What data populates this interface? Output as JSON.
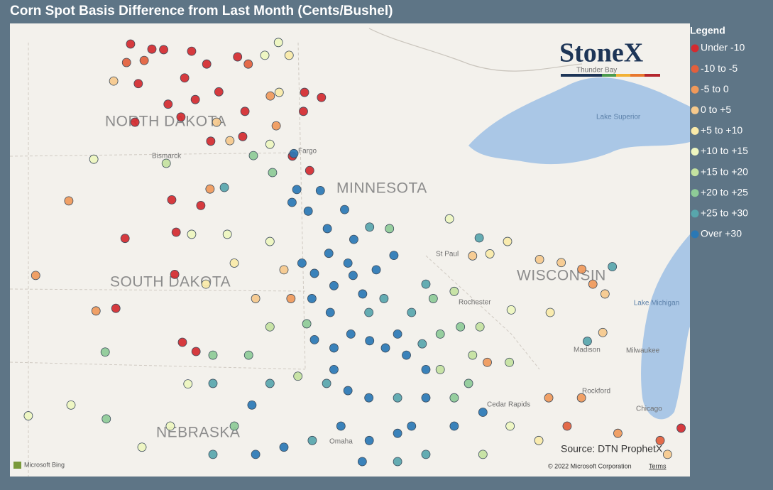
{
  "title": "Corn Spot Basis Difference from Last Month (Cents/Bushel)",
  "legend": {
    "title": "Legend",
    "classes": [
      {
        "label": "Under -10",
        "color": "#d42a2f"
      },
      {
        "label": "-10 to -5",
        "color": "#e35f3c"
      },
      {
        "label": "-5 to 0",
        "color": "#f0995a"
      },
      {
        "label": "0 to +5",
        "color": "#f6c98c"
      },
      {
        "label": "+5 to +10",
        "color": "#faeaa8"
      },
      {
        "label": "+10 to +15",
        "color": "#eef6bf"
      },
      {
        "label": "+15 to +20",
        "color": "#c4e2a0"
      },
      {
        "label": "+20 to +25",
        "color": "#8ecb97"
      },
      {
        "label": "+25 to +30",
        "color": "#58a6ac"
      },
      {
        "label": "Over +30",
        "color": "#2a78b5"
      }
    ]
  },
  "logo": "StoneX",
  "source": "Source: DTN ProphetX",
  "attribution": {
    "provider": "Microsoft Bing",
    "copyright": "© 2022 Microsoft Corporation",
    "terms": "Terms"
  },
  "map": {
    "places": [
      "NORTH DAKOTA",
      "MINNESOTA",
      "SOUTH DAKOTA",
      "WISCONSIN",
      "NEBRASKA",
      "Bismarck",
      "Fargo",
      "Lake Superior",
      "Lake Michigan",
      "Milwaukee",
      "Madison",
      "Rockford",
      "Chicago",
      "Cedar Rapids",
      "Rochester",
      "Omaha",
      "St Paul",
      "Thunder Bay"
    ],
    "lon_range": [
      -104.58,
      -86.09
    ],
    "lat_range": [
      40.75,
      49.56
    ],
    "points": [
      [
        -101.3,
        49.16,
        0
      ],
      [
        -100.72,
        49.06,
        0
      ],
      [
        -99.64,
        49.02,
        0
      ],
      [
        -98.39,
        48.91,
        0
      ],
      [
        -99.23,
        48.77,
        0
      ],
      [
        -101.09,
        48.39,
        0
      ],
      [
        -100.28,
        47.99,
        0
      ],
      [
        -99.54,
        48.08,
        0
      ],
      [
        -98.9,
        48.23,
        0
      ],
      [
        -98.19,
        47.85,
        0
      ],
      [
        -101.18,
        47.64,
        0
      ],
      [
        -99.12,
        47.27,
        0
      ],
      [
        -98.25,
        47.36,
        0
      ],
      [
        -100.18,
        46.13,
        0
      ],
      [
        -101.45,
        45.38,
        0
      ],
      [
        -100.06,
        45.5,
        0
      ],
      [
        -100.1,
        44.68,
        0
      ],
      [
        -101.7,
        44.02,
        0
      ],
      [
        -99.89,
        43.36,
        0
      ],
      [
        -99.52,
        43.18,
        0
      ],
      [
        -101.41,
        48.8,
        1
      ],
      [
        -100.93,
        48.84,
        1
      ],
      [
        -98.1,
        48.77,
        1
      ],
      [
        -97.5,
        48.15,
        2
      ],
      [
        -96.57,
        48.22,
        0
      ],
      [
        -96.11,
        48.12,
        0
      ],
      [
        -96.6,
        47.85,
        0
      ],
      [
        -96.43,
        46.7,
        0
      ],
      [
        -96.9,
        46.98,
        0
      ],
      [
        -97.34,
        47.57,
        2
      ],
      [
        -97.26,
        48.22,
        4
      ],
      [
        -97.65,
        48.94,
        5
      ],
      [
        -96.99,
        48.94,
        4
      ],
      [
        -98.96,
        47.64,
        3
      ],
      [
        -98.6,
        47.28,
        3
      ],
      [
        -99.14,
        46.34,
        2
      ],
      [
        -102.98,
        46.11,
        2
      ],
      [
        -99.39,
        46.02,
        0
      ],
      [
        -102.3,
        46.92,
        5
      ],
      [
        -100.33,
        46.84,
        6
      ],
      [
        -97.96,
        46.99,
        7
      ],
      [
        -97.51,
        47.21,
        5
      ],
      [
        -96.86,
        47.03,
        9
      ],
      [
        -97.44,
        46.66,
        7
      ],
      [
        -98.75,
        46.37,
        8
      ],
      [
        -96.78,
        46.33,
        9
      ],
      [
        -96.91,
        46.08,
        9
      ],
      [
        -96.14,
        46.31,
        9
      ],
      [
        -96.47,
        45.91,
        9
      ],
      [
        -95.95,
        45.57,
        9
      ],
      [
        -95.48,
        45.94,
        9
      ],
      [
        -94.8,
        45.6,
        8
      ],
      [
        -94.26,
        45.57,
        7
      ],
      [
        -95.23,
        45.36,
        9
      ],
      [
        -95.91,
        45.09,
        9
      ],
      [
        -96.3,
        44.7,
        9
      ],
      [
        -95.25,
        44.66,
        9
      ],
      [
        -95.77,
        44.46,
        9
      ],
      [
        -96.37,
        44.21,
        9
      ],
      [
        -94.99,
        44.3,
        9
      ],
      [
        -94.41,
        44.21,
        8
      ],
      [
        -94.14,
        45.05,
        9
      ],
      [
        -95.87,
        43.94,
        9
      ],
      [
        -96.51,
        43.72,
        7
      ],
      [
        -96.3,
        43.41,
        9
      ],
      [
        -95.77,
        43.25,
        9
      ],
      [
        -95.31,
        43.52,
        9
      ],
      [
        -94.8,
        43.39,
        9
      ],
      [
        -94.37,
        43.25,
        9
      ],
      [
        -93.8,
        43.11,
        9
      ],
      [
        -93.37,
        43.33,
        8
      ],
      [
        -92.88,
        43.52,
        7
      ],
      [
        -92.33,
        43.66,
        7
      ],
      [
        -93.66,
        43.94,
        8
      ],
      [
        -94.82,
        43.94,
        8
      ],
      [
        -93.07,
        44.21,
        7
      ],
      [
        -92.5,
        44.35,
        6
      ],
      [
        -93.27,
        44.49,
        8
      ],
      [
        -92.63,
        45.76,
        5
      ],
      [
        -91.82,
        45.39,
        8
      ],
      [
        -92.0,
        45.04,
        3
      ],
      [
        -91.53,
        45.08,
        4
      ],
      [
        -91.05,
        45.32,
        4
      ],
      [
        -90.18,
        44.97,
        3
      ],
      [
        -89.59,
        44.91,
        3
      ],
      [
        -89.03,
        44.78,
        2
      ],
      [
        -88.2,
        44.83,
        8
      ],
      [
        -88.73,
        44.49,
        2
      ],
      [
        -88.4,
        44.3,
        3
      ],
      [
        -88.46,
        43.55,
        3
      ],
      [
        -88.88,
        43.38,
        8
      ],
      [
        -89.89,
        43.94,
        4
      ],
      [
        -90.95,
        43.99,
        5
      ],
      [
        -91.8,
        43.66,
        6
      ],
      [
        -92.0,
        43.11,
        6
      ],
      [
        -91.0,
        42.97,
        6
      ],
      [
        -91.6,
        42.97,
        2
      ],
      [
        -89.93,
        42.28,
        2
      ],
      [
        -89.04,
        42.28,
        2
      ],
      [
        -89.43,
        41.73,
        1
      ],
      [
        -88.05,
        41.59,
        2
      ],
      [
        -86.9,
        41.45,
        1
      ],
      [
        -86.33,
        41.69,
        0
      ],
      [
        -86.7,
        41.18,
        3
      ],
      [
        -90.2,
        41.45,
        4
      ],
      [
        -90.98,
        41.73,
        5
      ],
      [
        -91.72,
        42.0,
        9
      ],
      [
        -92.5,
        42.28,
        7
      ],
      [
        -93.27,
        42.28,
        9
      ],
      [
        -94.04,
        42.28,
        8
      ],
      [
        -94.82,
        42.28,
        9
      ],
      [
        -95.39,
        42.42,
        9
      ],
      [
        -95.97,
        42.56,
        8
      ],
      [
        -96.75,
        42.7,
        6
      ],
      [
        -97.51,
        42.56,
        8
      ],
      [
        -98.0,
        42.14,
        9
      ],
      [
        -98.48,
        41.73,
        7
      ],
      [
        -99.06,
        42.56,
        8
      ],
      [
        -100.22,
        41.73,
        5
      ],
      [
        -100.99,
        41.32,
        5
      ],
      [
        -101.96,
        41.87,
        7
      ],
      [
        -102.92,
        42.14,
        5
      ],
      [
        -104.08,
        41.93,
        5
      ],
      [
        -103.88,
        44.66,
        2
      ],
      [
        -102.24,
        43.97,
        2
      ],
      [
        -101.99,
        43.17,
        7
      ],
      [
        -99.74,
        42.55,
        5
      ],
      [
        -99.06,
        41.18,
        8
      ],
      [
        -97.9,
        41.18,
        9
      ],
      [
        -97.13,
        41.32,
        9
      ],
      [
        -96.36,
        41.45,
        8
      ],
      [
        -95.58,
        41.73,
        9
      ],
      [
        -94.81,
        41.45,
        9
      ],
      [
        -94.04,
        41.59,
        9
      ],
      [
        -93.27,
        41.18,
        8
      ],
      [
        -92.5,
        41.73,
        9
      ],
      [
        -91.72,
        41.18,
        6
      ],
      [
        -97.9,
        44.21,
        3
      ],
      [
        -98.48,
        44.9,
        4
      ],
      [
        -99.25,
        44.49,
        4
      ],
      [
        -99.64,
        45.46,
        5
      ],
      [
        -98.67,
        45.46,
        5
      ],
      [
        -97.51,
        45.32,
        5
      ],
      [
        -97.13,
        44.77,
        3
      ],
      [
        -96.94,
        44.21,
        2
      ],
      [
        -97.51,
        43.66,
        6
      ],
      [
        -98.09,
        43.11,
        7
      ],
      [
        -99.06,
        43.11,
        7
      ],
      [
        -97.28,
        49.19,
        5
      ],
      [
        -101.76,
        48.44,
        3
      ],
      [
        -100.4,
        49.05,
        0
      ],
      [
        -99.83,
        48.5,
        0
      ],
      [
        -99.93,
        47.74,
        0
      ],
      [
        -96.64,
        44.9,
        9
      ],
      [
        -95.39,
        44.9,
        9
      ],
      [
        -94.62,
        44.77,
        9
      ],
      [
        -94.04,
        43.52,
        9
      ],
      [
        -93.27,
        42.83,
        9
      ],
      [
        -95.77,
        42.83,
        9
      ],
      [
        -93.66,
        41.73,
        9
      ],
      [
        -92.88,
        42.83,
        6
      ],
      [
        -92.11,
        42.56,
        7
      ],
      [
        -95.0,
        41.04,
        9
      ],
      [
        -94.04,
        41.04,
        8
      ]
    ]
  }
}
